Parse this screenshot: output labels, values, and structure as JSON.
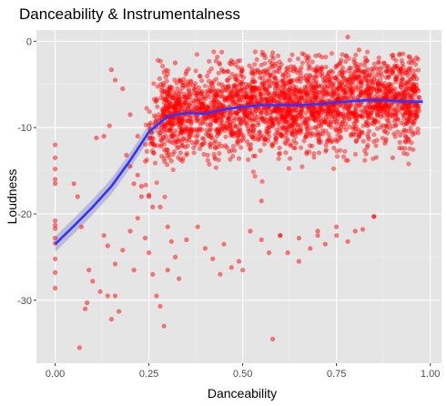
{
  "chart_data": {
    "type": "scatter",
    "title": "Danceability & Instrumentalness",
    "xlabel": "Danceability",
    "ylabel": "Loudness",
    "xlim": [
      -0.05,
      1.03
    ],
    "ylim": [
      -37.3,
      1.3
    ],
    "x_ticks": [
      0.0,
      0.25,
      0.5,
      0.75,
      1.0
    ],
    "x_tick_labels": [
      "0.00",
      "0.25",
      "0.50",
      "0.75",
      "1.00"
    ],
    "y_ticks": [
      0,
      -10,
      -20,
      -30
    ],
    "y_tick_labels": [
      "0",
      "-10",
      "-20",
      "-30"
    ],
    "grid": true,
    "panel_background": "#e5e5e5",
    "point_color": "#ff0000",
    "smooth_color": "#3333ff",
    "band_color": "#9999cc",
    "series": [
      {
        "kind": "points",
        "x": [
          0.0,
          0.0,
          0.0,
          0.0,
          0.0,
          0.0,
          0.0,
          0.0,
          0.0,
          0.0,
          0.0,
          0.0,
          0.0,
          0.065,
          0.08,
          0.085,
          0.09,
          0.1,
          0.12,
          0.14,
          0.15,
          0.16,
          0.17,
          0.05,
          0.06,
          0.07,
          0.11,
          0.13,
          0.145,
          0.15,
          0.16,
          0.18,
          0.2,
          0.22,
          0.21,
          0.25,
          0.26,
          0.13,
          0.14,
          0.16,
          0.18,
          0.2,
          0.21,
          0.22,
          0.23,
          0.24,
          0.25,
          0.26,
          0.27,
          0.28,
          0.29,
          0.3,
          0.19,
          0.2,
          0.22,
          0.23,
          0.25,
          0.28,
          0.3,
          0.31,
          0.33,
          0.32,
          0.35,
          0.38,
          0.4,
          0.42,
          0.45,
          0.47,
          0.44,
          0.49,
          0.5,
          0.52,
          0.55,
          0.57,
          0.6,
          0.62,
          0.65,
          0.68,
          0.7,
          0.72,
          0.75,
          0.78,
          0.8,
          0.82,
          0.85,
          0.58,
          0.6,
          0.7,
          0.75,
          0.85,
          0.9,
          0.65,
          0.55,
          0.35,
          0.34,
          0.32,
          0.78,
          0.81,
          0.76
        ],
        "y": [
          -12.0,
          -13.5,
          -14.8,
          -16.5,
          -20.8,
          -21.3,
          -21.7,
          -22.8,
          -23.4,
          -25.2,
          -26.8,
          -28.6,
          -16.0,
          -35.5,
          -31.0,
          -30.3,
          -26.5,
          -27.8,
          -29.0,
          -29.5,
          -32.2,
          -29.5,
          -31.3,
          -16.5,
          -18.0,
          -21.5,
          -11.2,
          -11.0,
          -9.8,
          -3.3,
          -4.5,
          -5.5,
          -8.5,
          -11.0,
          -16.5,
          -17.8,
          -19.2,
          -22.5,
          -23.7,
          -25.8,
          -24.2,
          -22.0,
          -26.5,
          -20.5,
          -18.0,
          -22.8,
          -24.5,
          -27.0,
          -29.5,
          -30.7,
          -33.0,
          -26.5,
          -13.2,
          -14.5,
          -15.5,
          -16.8,
          -18.0,
          -19.2,
          -21.5,
          -23.2,
          -27.5,
          -25.0,
          -23.0,
          -21.5,
          -24.0,
          -25.2,
          -23.5,
          -26.2,
          -27.0,
          -25.5,
          -26.5,
          -22.0,
          -23.0,
          -24.5,
          -22.5,
          -24.5,
          -22.8,
          -24.0,
          -22.5,
          -23.5,
          -21.5,
          -23.2,
          -22.0,
          -21.8,
          -20.3,
          -34.5,
          -22.5,
          -22.0,
          -22.5,
          -20.3,
          -13.5,
          -25.5,
          -18.5,
          -3.5,
          -4.8,
          -2.5,
          0.5,
          -1.0,
          -2.5
        ]
      },
      {
        "kind": "smooth",
        "name": "",
        "x": [
          0.0,
          0.05,
          0.1,
          0.15,
          0.2,
          0.25,
          0.3,
          0.35,
          0.4,
          0.45,
          0.5,
          0.55,
          0.6,
          0.65,
          0.7,
          0.75,
          0.8,
          0.85,
          0.9,
          0.95,
          0.98
        ],
        "y": [
          -23.5,
          -21.4,
          -19.2,
          -16.8,
          -13.8,
          -10.5,
          -8.7,
          -8.3,
          -8.4,
          -7.9,
          -7.6,
          -7.4,
          -7.4,
          -7.4,
          -7.3,
          -7.1,
          -6.9,
          -6.8,
          -6.9,
          -7.0,
          -7.0
        ]
      }
    ]
  }
}
